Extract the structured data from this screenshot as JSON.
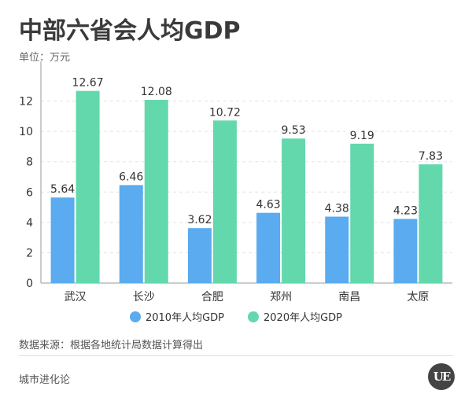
{
  "header": {
    "title": "中部六省会人均GDP",
    "unit": "单位：万元"
  },
  "colors": {
    "series_2010": "#5aabef",
    "series_2020": "#63d8ac"
  },
  "legend": {
    "items": [
      {
        "label": "2010年人均GDP",
        "color": "#5aabef"
      },
      {
        "label": "2020年人均GDP",
        "color": "#63d8ac"
      }
    ]
  },
  "chart_data": {
    "type": "bar",
    "categories": [
      "武汉",
      "长沙",
      "合肥",
      "郑州",
      "南昌",
      "太原"
    ],
    "series": [
      {
        "name": "2010年人均GDP",
        "values": [
          5.64,
          6.46,
          3.62,
          4.63,
          4.38,
          4.23
        ]
      },
      {
        "name": "2020年人均GDP",
        "values": [
          12.67,
          12.08,
          10.72,
          9.53,
          9.19,
          7.83
        ]
      }
    ],
    "title": "中部六省会人均GDP",
    "ylabel": "",
    "xlabel": "",
    "ylim": [
      0,
      14
    ],
    "yticks": [
      0,
      2,
      4,
      6,
      8,
      10,
      12
    ],
    "grid": true,
    "legend_position": "bottom"
  },
  "footer": {
    "source": "数据来源：根据各地统计局数据计算得出",
    "brand": "城市进化论",
    "logo_text": "UE"
  }
}
